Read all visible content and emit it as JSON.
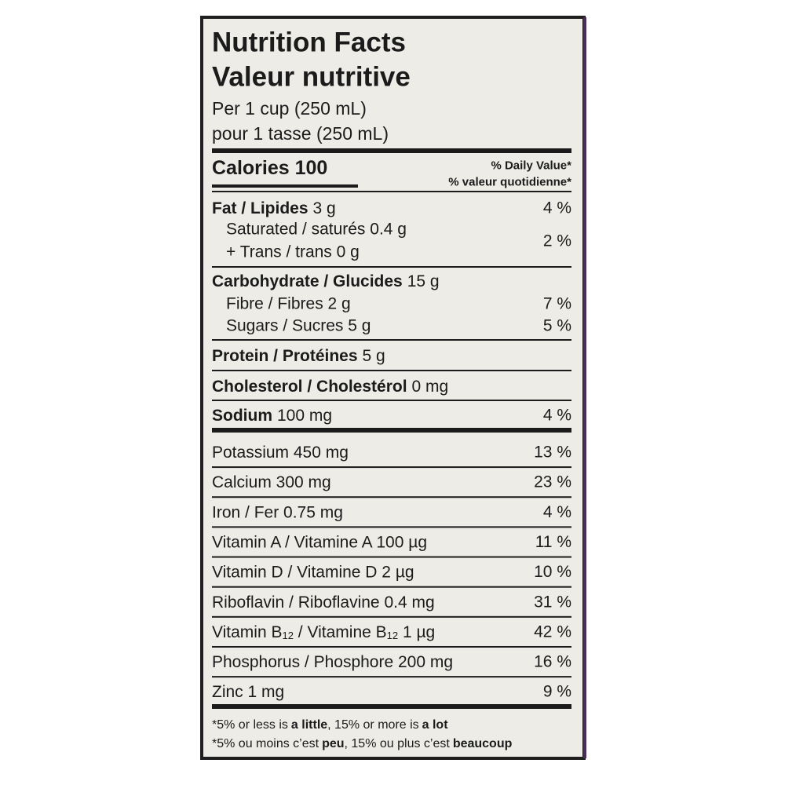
{
  "header": {
    "title_en": "Nutrition Facts",
    "title_fr": "Valeur nutritive",
    "serving_en": "Per 1 cup (250 mL)",
    "serving_fr": "pour 1 tasse (250 mL)"
  },
  "calories": {
    "label": "Calories 100",
    "dv_en": "% Daily Value*",
    "dv_fr": "% valeur quotidienne*"
  },
  "fat": {
    "name": "Fat / Lipides",
    "amount": "3 g",
    "dv": "4 %"
  },
  "saturated": "Saturated / saturés 0.4 g",
  "trans": "+ Trans / trans 0 g",
  "saturated_trans_dv": "2 %",
  "carbohydrate": {
    "name": "Carbohydrate / Glucides",
    "amount": "15 g"
  },
  "fibre": {
    "label": "Fibre / Fibres 2 g",
    "dv": "7 %"
  },
  "sugars": {
    "label": "Sugars / Sucres 5 g",
    "dv": "5 %"
  },
  "protein": {
    "name": "Protein / Protéines",
    "amount": "5 g"
  },
  "cholesterol": {
    "name": "Cholesterol / Cholestérol",
    "amount": "0 mg"
  },
  "sodium": {
    "name": "Sodium",
    "amount": "100 mg",
    "dv": "4 %"
  },
  "minerals": [
    {
      "label": [
        "Potassium 450 mg"
      ],
      "dv": "13 %"
    },
    {
      "label": [
        "Calcium 300 mg"
      ],
      "dv": "23 %"
    },
    {
      "label": [
        "Iron / Fer 0.75 mg"
      ],
      "dv": "4 %"
    },
    {
      "label": [
        "Vitamin A / Vitamine A 100 µg"
      ],
      "dv": "11 %"
    },
    {
      "label": [
        "Vitamin D / Vitamine D 2 µg"
      ],
      "dv": "10 %"
    },
    {
      "label": [
        "Riboflavin / Riboflavine 0.4 mg"
      ],
      "dv": "31 %"
    },
    {
      "label": [
        "Vitamin B",
        "12",
        " / Vitamine B",
        "12",
        " 1 µg"
      ],
      "dv": "42 %"
    },
    {
      "label": [
        "Phosphorus / Phosphore 200 mg"
      ],
      "dv": "16 %"
    },
    {
      "label": [
        "Zinc 1 mg"
      ],
      "dv": "9 %"
    }
  ],
  "footnote": {
    "en": [
      "*5% or less is",
      "a little",
      ", 15% or more is",
      "a lot"
    ],
    "fr": [
      "*5% ou moins c’est",
      "peu",
      ", 15% ou plus c’est",
      "beaucoup"
    ]
  }
}
